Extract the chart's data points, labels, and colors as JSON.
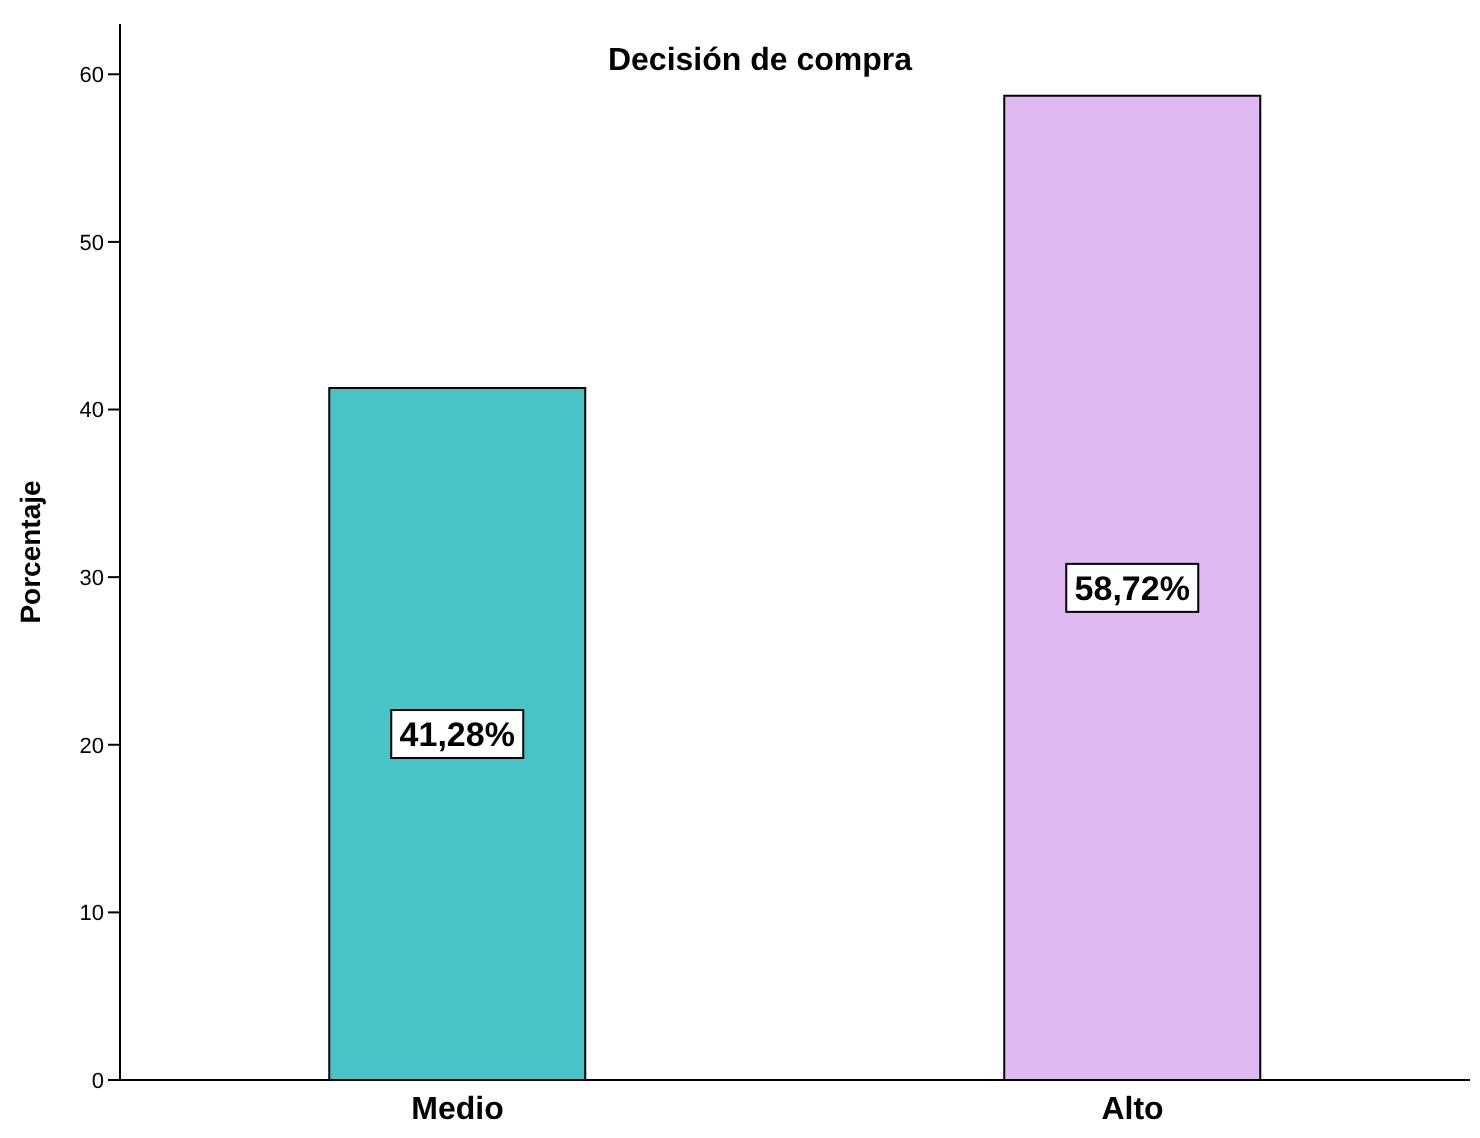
{
  "chart_data": {
    "type": "bar",
    "title": "Decisión de compra",
    "ylabel": "Porcentaje",
    "categories": [
      "Medio",
      "Alto"
    ],
    "values": [
      41.28,
      58.72
    ],
    "colors": [
      "#48c3c6",
      "#dfbaf2"
    ],
    "value_labels": [
      "41,28%",
      "58,72%"
    ],
    "ylim": [
      0,
      63
    ],
    "yticks": [
      0,
      10,
      20,
      30,
      40,
      50,
      60
    ],
    "grid": false
  }
}
